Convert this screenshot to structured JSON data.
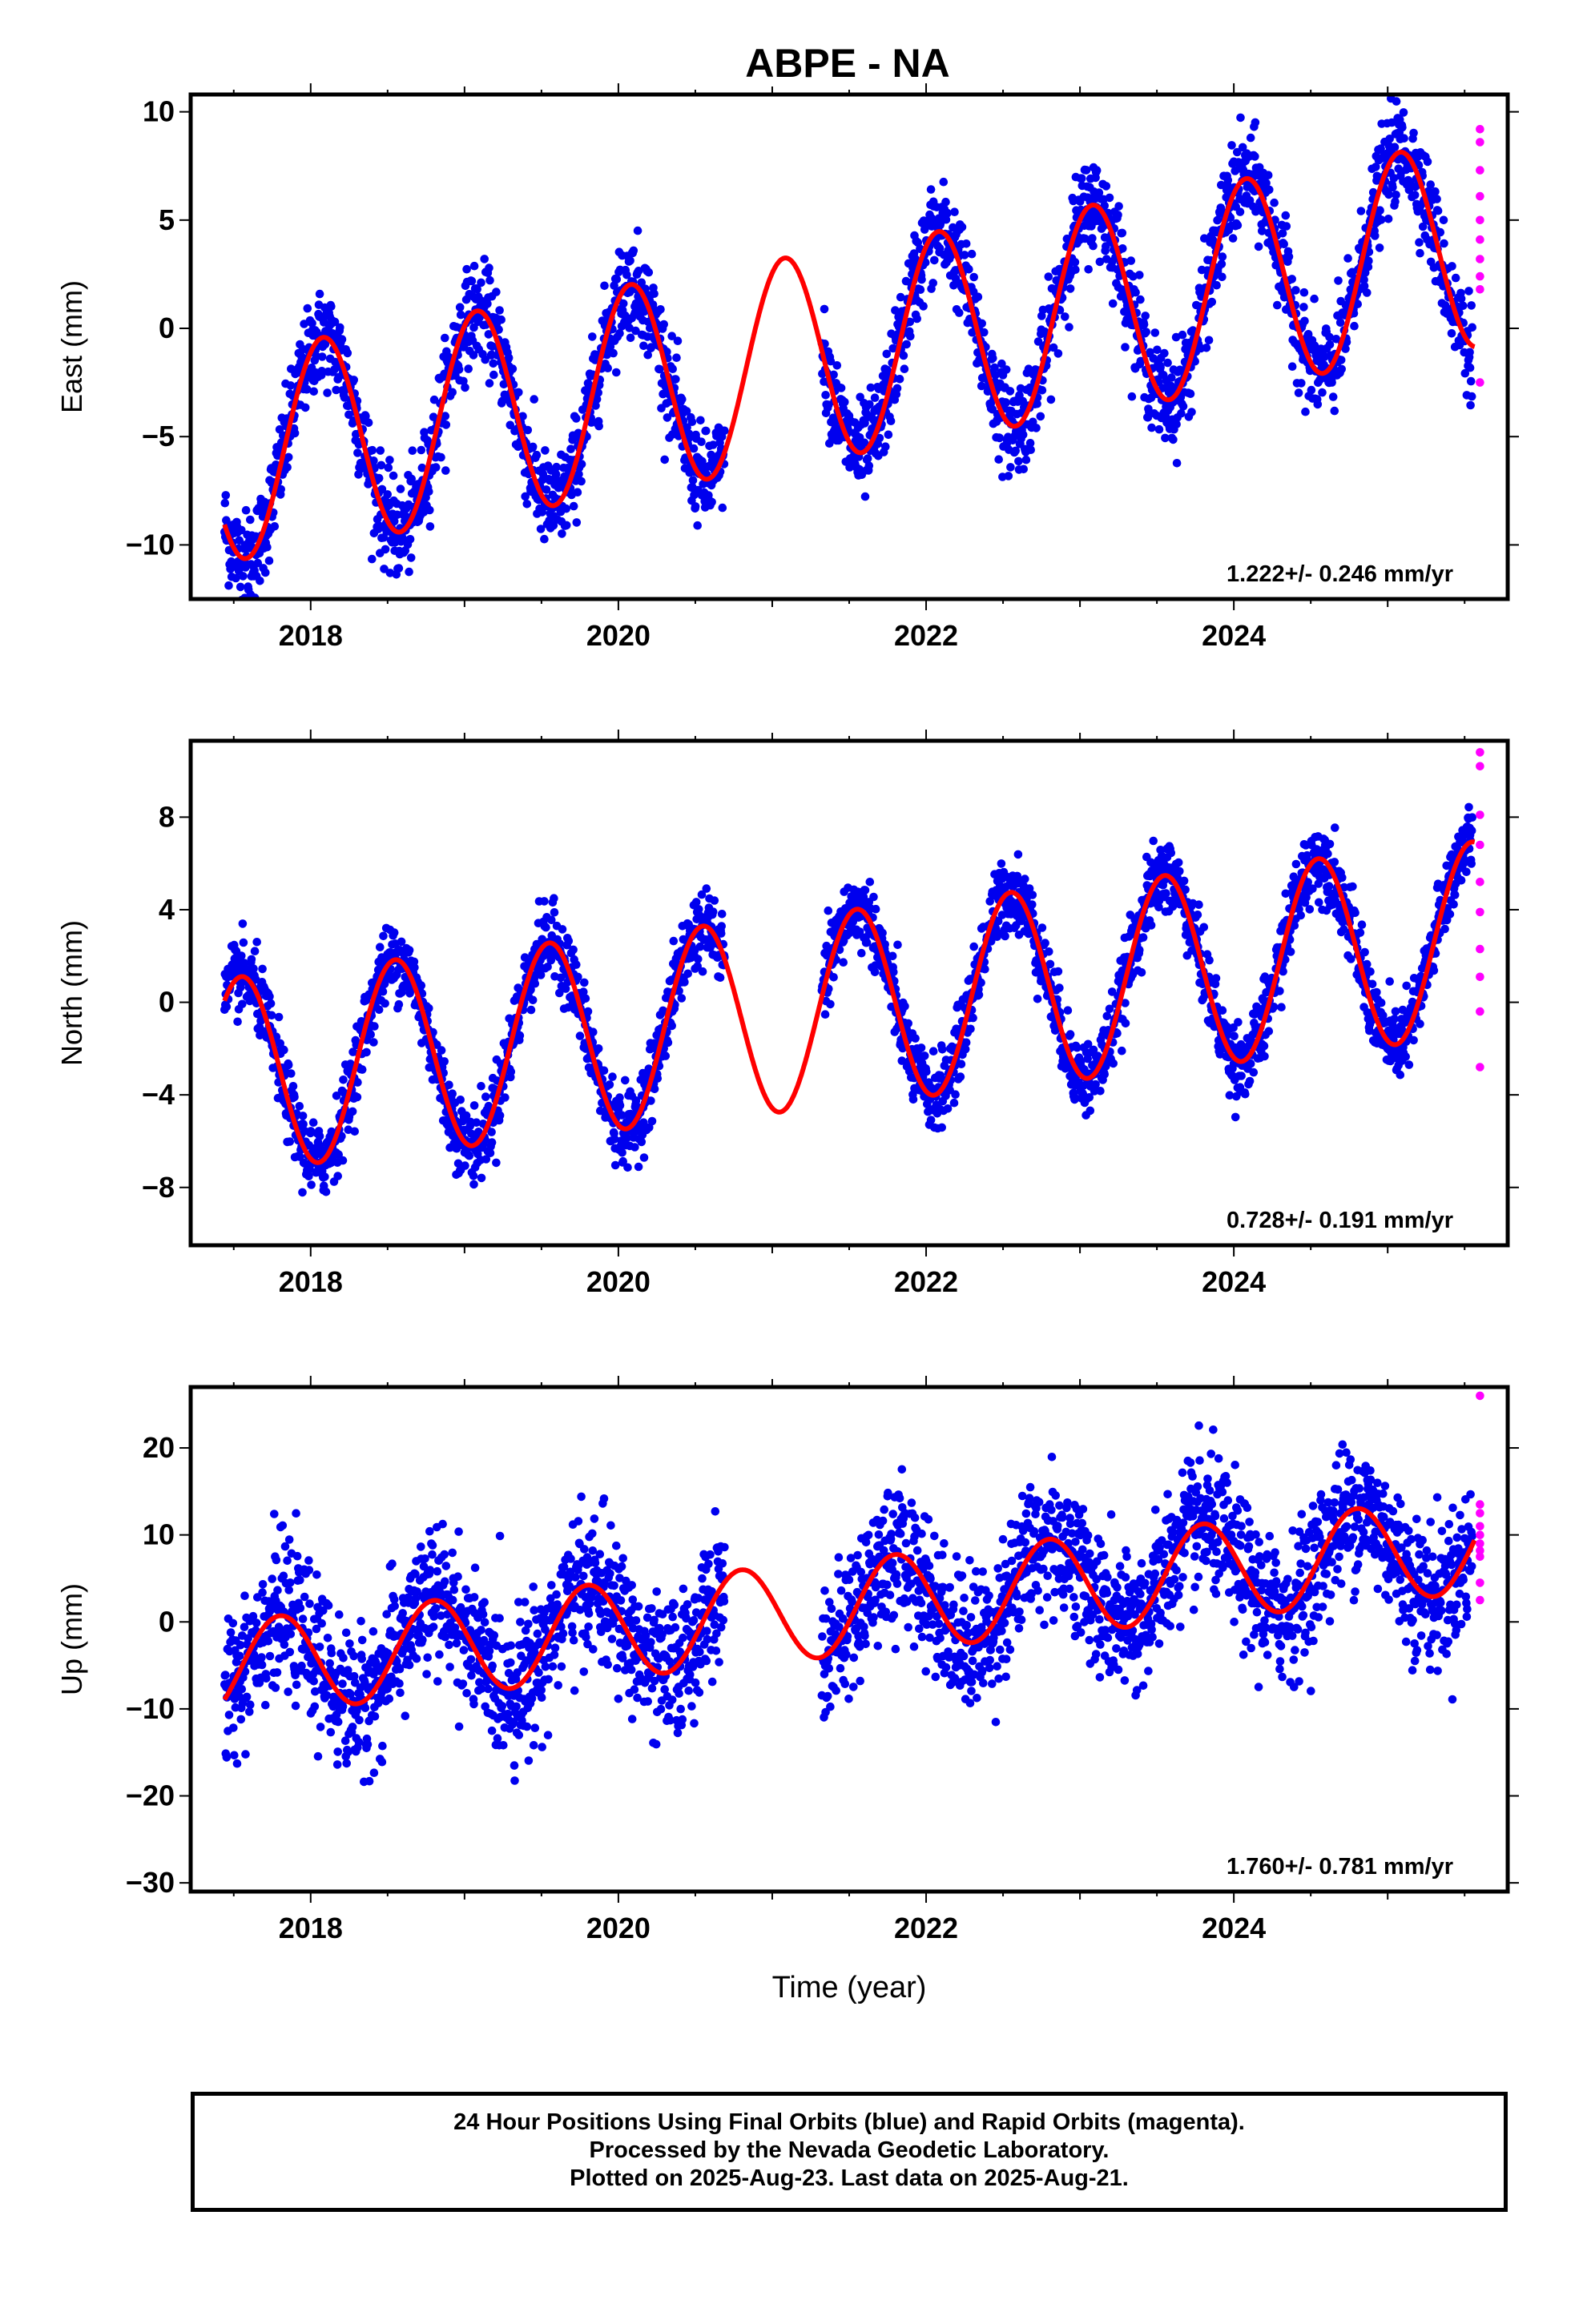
{
  "page": {
    "title": "ABPE - NA"
  },
  "footer": {
    "line1": "24 Hour Positions Using Final Orbits (blue) and Rapid Orbits (magenta).",
    "line2": "Processed by the Nevada Geodetic Laboratory.",
    "line3": "Plotted on 2025-Aug-23. Last data on 2025-Aug-21."
  },
  "colors": {
    "final_orbits": "#0000ee",
    "rapid_orbits": "#ff00ff",
    "model": "#ff0000",
    "frame": "#000000"
  },
  "chart_data": [
    {
      "type": "scatter",
      "title": "ABPE - NA",
      "xlabel": "",
      "ylabel": "East (mm)",
      "xlim": [
        2017.22,
        2025.78
      ],
      "ylim": [
        -12.5,
        10.8
      ],
      "xticks": [
        2018,
        2020,
        2022,
        2024
      ],
      "yticks": [
        -10,
        -5,
        0,
        5,
        10
      ],
      "rate_label": "1.222+/- 0.246 mm/yr",
      "rate": 1.222,
      "offset": -6.05,
      "seasonal": {
        "amplitude": 4.8,
        "peak_phase": 0.08
      },
      "noise": 1.1,
      "gaps": [
        [
          2020.69,
          2021.32
        ]
      ],
      "series": [
        {
          "name": "Final Orbits",
          "color": "#0000ee",
          "data_range": [
            2017.44,
            2025.55
          ]
        },
        {
          "name": "Rapid Orbits",
          "color": "#ff00ff",
          "x": 2025.6,
          "values": [
            9.2,
            8.6,
            7.3,
            6.1,
            5.0,
            4.1,
            3.2,
            2.4,
            1.8,
            -2.5
          ]
        },
        {
          "name": "Model",
          "color": "#ff0000"
        }
      ],
      "grid": false
    },
    {
      "type": "scatter",
      "xlabel": "",
      "ylabel": "North (mm)",
      "xlim": [
        2017.22,
        2025.78
      ],
      "ylim": [
        -10.5,
        11.3
      ],
      "xticks": [
        2018,
        2020,
        2022,
        2024
      ],
      "yticks": [
        -8,
        -4,
        0,
        4,
        8
      ],
      "rate_label": "0.728+/- 0.191 mm/yr",
      "rate": 0.728,
      "offset": -3.2,
      "seasonal": {
        "amplitude": 4.2,
        "peak_phase": 0.55
      },
      "noise": 0.8,
      "gaps": [
        [
          2020.69,
          2021.32
        ]
      ],
      "series": [
        {
          "name": "Final Orbits",
          "color": "#0000ee",
          "data_range": [
            2017.44,
            2025.55
          ]
        },
        {
          "name": "Rapid Orbits",
          "color": "#ff00ff",
          "x": 2025.6,
          "values": [
            10.8,
            10.2,
            8.1,
            6.8,
            5.2,
            3.9,
            2.3,
            1.1,
            -0.4,
            -2.8
          ]
        },
        {
          "name": "Model",
          "color": "#ff0000"
        }
      ],
      "grid": false
    },
    {
      "type": "scatter",
      "xlabel": "Time (year)",
      "ylabel": "Up (mm)",
      "xlim": [
        2017.22,
        2025.78
      ],
      "ylim": [
        -31,
        27
      ],
      "xticks": [
        2018,
        2020,
        2022,
        2024
      ],
      "yticks": [
        -30,
        -20,
        -10,
        0,
        10,
        20
      ],
      "rate_label": "1.760+/- 0.781 mm/yr",
      "rate": 1.76,
      "offset": -5.5,
      "seasonal": {
        "amplitude": 5.5,
        "peak_phase": 0.8
      },
      "noise": 4.0,
      "gaps": [
        [
          2020.69,
          2021.32
        ]
      ],
      "series": [
        {
          "name": "Final Orbits",
          "color": "#0000ee",
          "data_range": [
            2017.44,
            2025.55
          ]
        },
        {
          "name": "Rapid Orbits",
          "color": "#ff00ff",
          "x": 2025.6,
          "values": [
            26,
            13.5,
            12.5,
            11,
            10,
            9,
            8.2,
            7.5,
            4.5,
            2.5
          ]
        },
        {
          "name": "Model",
          "color": "#ff0000"
        }
      ],
      "grid": false
    }
  ]
}
